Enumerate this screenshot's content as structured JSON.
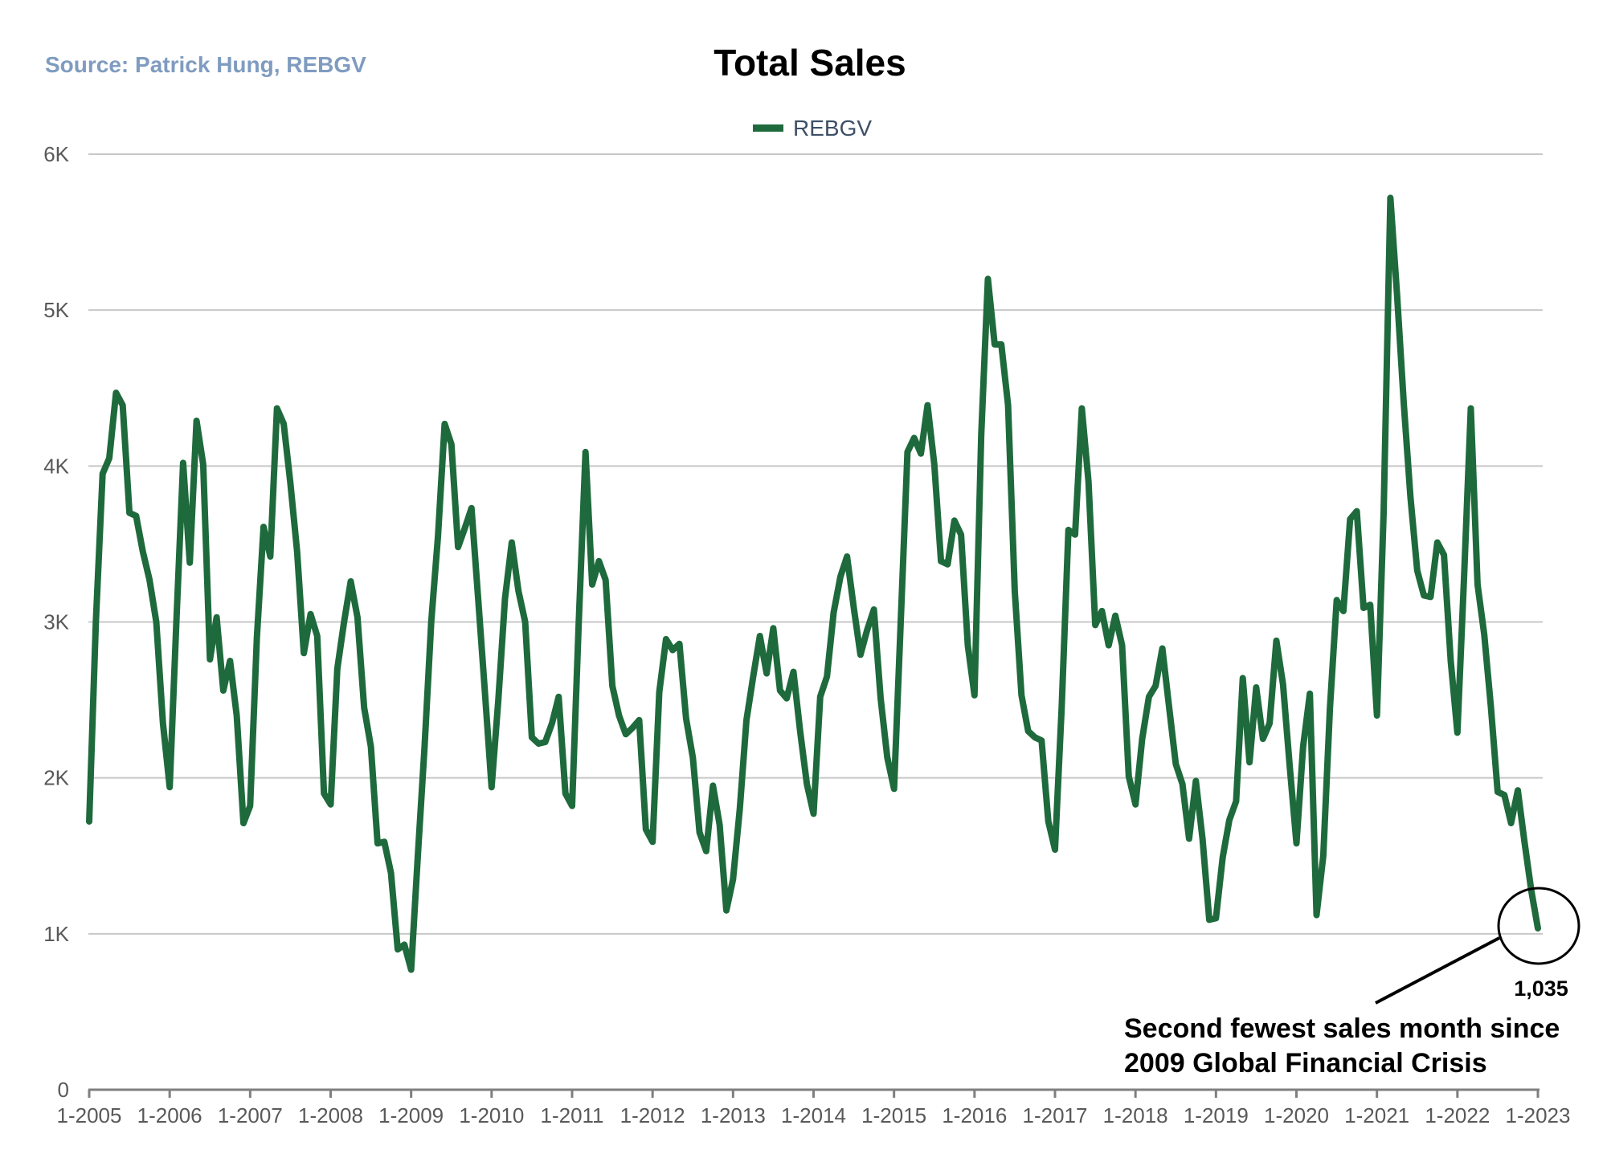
{
  "header": {
    "source": "Source:  Patrick Hung, REBGV"
  },
  "chart_data": {
    "type": "line",
    "title": "Total Sales",
    "xlabel": "",
    "ylabel": "",
    "ylim": [
      0,
      6000
    ],
    "grid": true,
    "legend_position": "top-center",
    "line_color": "#1e6a3c",
    "y_ticks": [
      0,
      1000,
      2000,
      3000,
      4000,
      5000,
      6000
    ],
    "y_tick_labels": [
      "0",
      "1K",
      "2K",
      "3K",
      "4K",
      "5K",
      "6K"
    ],
    "x_tick_labels": [
      "1-2005",
      "1-2006",
      "1-2007",
      "1-2008",
      "1-2009",
      "1-2010",
      "1-2011",
      "1-2012",
      "1-2013",
      "1-2014",
      "1-2015",
      "1-2016",
      "1-2017",
      "1-2018",
      "1-2019",
      "1-2020",
      "1-2021",
      "1-2022",
      "1-2023"
    ],
    "x_start": "1-2005",
    "series": [
      {
        "name": "REBGV",
        "values": [
          1720,
          3000,
          3950,
          4050,
          4470,
          4390,
          3700,
          3680,
          3450,
          3270,
          3000,
          2350,
          1940,
          3000,
          4020,
          3380,
          4290,
          4010,
          2760,
          3030,
          2560,
          2750,
          2400,
          1710,
          1820,
          2900,
          3610,
          3420,
          4370,
          4270,
          3890,
          3450,
          2800,
          3050,
          2910,
          1900,
          1830,
          2700,
          3000,
          3260,
          3030,
          2450,
          2200,
          1580,
          1590,
          1390,
          900,
          930,
          770,
          1500,
          2200,
          3000,
          3550,
          4270,
          4140,
          3480,
          3600,
          3730,
          3150,
          2550,
          1940,
          2500,
          3150,
          3510,
          3200,
          3000,
          2260,
          2220,
          2230,
          2350,
          2520,
          1900,
          1820,
          3000,
          4090,
          3240,
          3390,
          3270,
          2590,
          2400,
          2280,
          2320,
          2370,
          1670,
          1590,
          2550,
          2890,
          2820,
          2860,
          2380,
          2130,
          1650,
          1530,
          1950,
          1700,
          1150,
          1350,
          1800,
          2370,
          2650,
          2910,
          2670,
          2960,
          2560,
          2510,
          2680,
          2300,
          1960,
          1770,
          2520,
          2650,
          3060,
          3290,
          3420,
          3090,
          2790,
          2950,
          3080,
          2510,
          2130,
          1930,
          3000,
          4090,
          4180,
          4080,
          4390,
          4010,
          3390,
          3370,
          3650,
          3560,
          2850,
          2530,
          4200,
          5200,
          4780,
          4780,
          4390,
          3200,
          2530,
          2300,
          2260,
          2240,
          1720,
          1540,
          2450,
          3590,
          3560,
          4370,
          3900,
          2980,
          3070,
          2850,
          3040,
          2850,
          2010,
          1830,
          2250,
          2520,
          2590,
          2830,
          2460,
          2090,
          1960,
          1610,
          1980,
          1610,
          1090,
          1100,
          1490,
          1730,
          1850,
          2640,
          2100,
          2580,
          2250,
          2350,
          2880,
          2600,
          2070,
          1580,
          2200,
          2540,
          1120,
          1500,
          2450,
          3140,
          3070,
          3660,
          3710,
          3090,
          3110,
          2400,
          3700,
          5720,
          5100,
          4400,
          3800,
          3330,
          3170,
          3160,
          3510,
          3430,
          2750,
          2290,
          3300,
          4370,
          3240,
          2920,
          2450,
          1910,
          1890,
          1710,
          1920,
          1590,
          1280,
          1035
        ]
      }
    ],
    "annotations": [
      {
        "label": "value",
        "text": "1,035"
      },
      {
        "label": "note_line1",
        "text": "Second fewest sales month since"
      },
      {
        "label": "note_line2",
        "text": "2009 Global Financial Crisis"
      }
    ]
  }
}
